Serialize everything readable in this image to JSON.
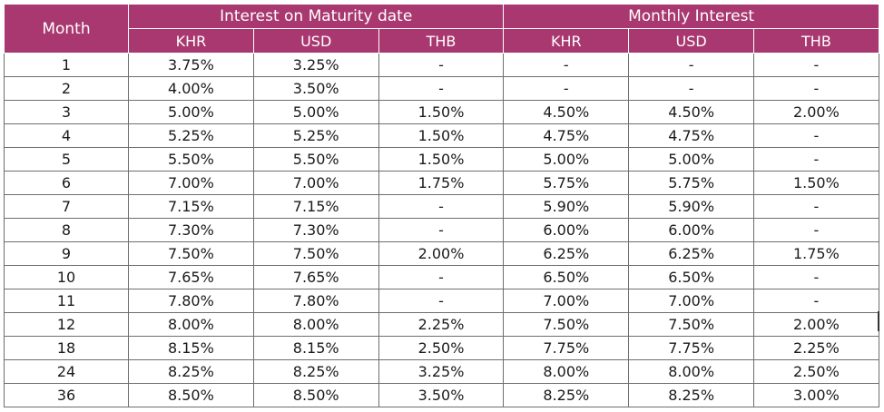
{
  "header": {
    "month": "Month",
    "group_maturity": "Interest on Maturity date",
    "group_monthly": "Monthly Interest",
    "currencies": [
      "KHR",
      "USD",
      "THB",
      "KHR",
      "USD",
      "THB"
    ]
  },
  "rows": [
    {
      "month": "1",
      "m_khr": "3.75%",
      "m_usd": "3.25%",
      "m_thb": "-",
      "mo_khr": "-",
      "mo_usd": "-",
      "mo_thb": "-"
    },
    {
      "month": "2",
      "m_khr": "4.00%",
      "m_usd": "3.50%",
      "m_thb": "-",
      "mo_khr": "-",
      "mo_usd": "-",
      "mo_thb": "-"
    },
    {
      "month": "3",
      "m_khr": "5.00%",
      "m_usd": "5.00%",
      "m_thb": "1.50%",
      "mo_khr": "4.50%",
      "mo_usd": "4.50%",
      "mo_thb": "2.00%"
    },
    {
      "month": "4",
      "m_khr": "5.25%",
      "m_usd": "5.25%",
      "m_thb": "1.50%",
      "mo_khr": "4.75%",
      "mo_usd": "4.75%",
      "mo_thb": "-"
    },
    {
      "month": "5",
      "m_khr": "5.50%",
      "m_usd": "5.50%",
      "m_thb": "1.50%",
      "mo_khr": "5.00%",
      "mo_usd": "5.00%",
      "mo_thb": "-"
    },
    {
      "month": "6",
      "m_khr": "7.00%",
      "m_usd": "7.00%",
      "m_thb": "1.75%",
      "mo_khr": "5.75%",
      "mo_usd": "5.75%",
      "mo_thb": "1.50%"
    },
    {
      "month": "7",
      "m_khr": "7.15%",
      "m_usd": "7.15%",
      "m_thb": "-",
      "mo_khr": "5.90%",
      "mo_usd": "5.90%",
      "mo_thb": "-"
    },
    {
      "month": "8",
      "m_khr": "7.30%",
      "m_usd": "7.30%",
      "m_thb": "-",
      "mo_khr": "6.00%",
      "mo_usd": "6.00%",
      "mo_thb": "-"
    },
    {
      "month": "9",
      "m_khr": "7.50%",
      "m_usd": "7.50%",
      "m_thb": "2.00%",
      "mo_khr": "6.25%",
      "mo_usd": "6.25%",
      "mo_thb": "1.75%"
    },
    {
      "month": "10",
      "m_khr": "7.65%",
      "m_usd": "7.65%",
      "m_thb": "-",
      "mo_khr": "6.50%",
      "mo_usd": "6.50%",
      "mo_thb": "-"
    },
    {
      "month": "11",
      "m_khr": "7.80%",
      "m_usd": "7.80%",
      "m_thb": "-",
      "mo_khr": "7.00%",
      "mo_usd": "7.00%",
      "mo_thb": "-"
    },
    {
      "month": "12",
      "m_khr": "8.00%",
      "m_usd": "8.00%",
      "m_thb": "2.25%",
      "mo_khr": "7.50%",
      "mo_usd": "7.50%",
      "mo_thb": "2.00%"
    },
    {
      "month": "18",
      "m_khr": "8.15%",
      "m_usd": "8.15%",
      "m_thb": "2.50%",
      "mo_khr": "7.75%",
      "mo_usd": "7.75%",
      "mo_thb": "2.25%"
    },
    {
      "month": "24",
      "m_khr": "8.25%",
      "m_usd": "8.25%",
      "m_thb": "3.25%",
      "mo_khr": "8.00%",
      "mo_usd": "8.00%",
      "mo_thb": "2.50%"
    },
    {
      "month": "36",
      "m_khr": "8.50%",
      "m_usd": "8.50%",
      "m_thb": "3.50%",
      "mo_khr": "8.25%",
      "mo_usd": "8.25%",
      "mo_thb": "3.00%"
    }
  ],
  "colors": {
    "header_bg": "#a8386f",
    "header_text": "#ffffff",
    "border": "#6e6e6e"
  }
}
